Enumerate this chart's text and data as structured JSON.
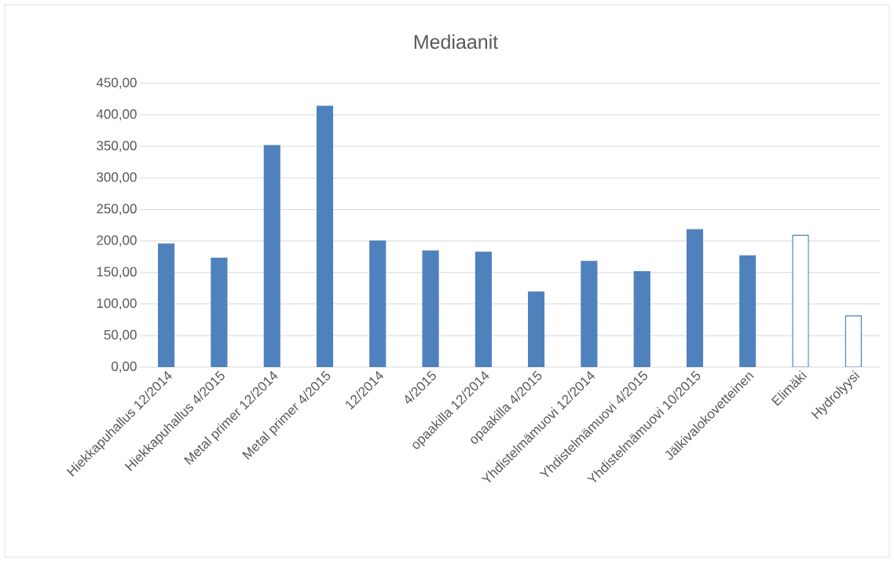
{
  "chart_data": {
    "type": "bar",
    "title": "Mediaanit",
    "categories": [
      "Hiekkapuhallus 12/2014",
      "Hiekkapuhallus 4/2015",
      "Metal primer 12/2014",
      "Metal primer 4/2015",
      "12/2014",
      "4/2015",
      "opaakilla 12/2014",
      "opaakilla 4/2015",
      "Yhdistelmämuovi 12/2014",
      "Yhdistelmämuovi 4/2015",
      "Yhdistelmämuovi 10/2015",
      "Jälkivalokovetteinen",
      "Elimäki",
      "Hydrolyysi"
    ],
    "values": [
      195.5,
      172.8,
      351.3,
      413.8,
      200.4,
      184.4,
      182.3,
      119.5,
      168,
      151.3,
      217.9,
      176.6,
      208.9,
      81.2
    ],
    "color": "#4f81bd",
    "colors": [
      "#4f81bd",
      "#4f81bd",
      "#4f81bd",
      "#4f81bd",
      "#4f81bd",
      "#4f81bd",
      "#4f81bd",
      "#4f81bd",
      "#4f81bd",
      "#4f81bd",
      "#4f81bd",
      "#4f81bd",
      "#ffffff",
      "#ffffff"
    ],
    "ylim": [
      0,
      450
    ],
    "yticks": [
      {
        "value": 0,
        "label": "0,00"
      },
      {
        "value": 50,
        "label": "50,00"
      },
      {
        "value": 100,
        "label": "100,00"
      },
      {
        "value": 150,
        "label": "150,00"
      },
      {
        "value": 200,
        "label": "200,00"
      },
      {
        "value": 250,
        "label": "250,00"
      },
      {
        "value": 300,
        "label": "300,00"
      },
      {
        "value": 350,
        "label": "350,00"
      },
      {
        "value": 400,
        "label": "400,00"
      },
      {
        "value": 450,
        "label": "450,00"
      }
    ],
    "grid": "y"
  }
}
